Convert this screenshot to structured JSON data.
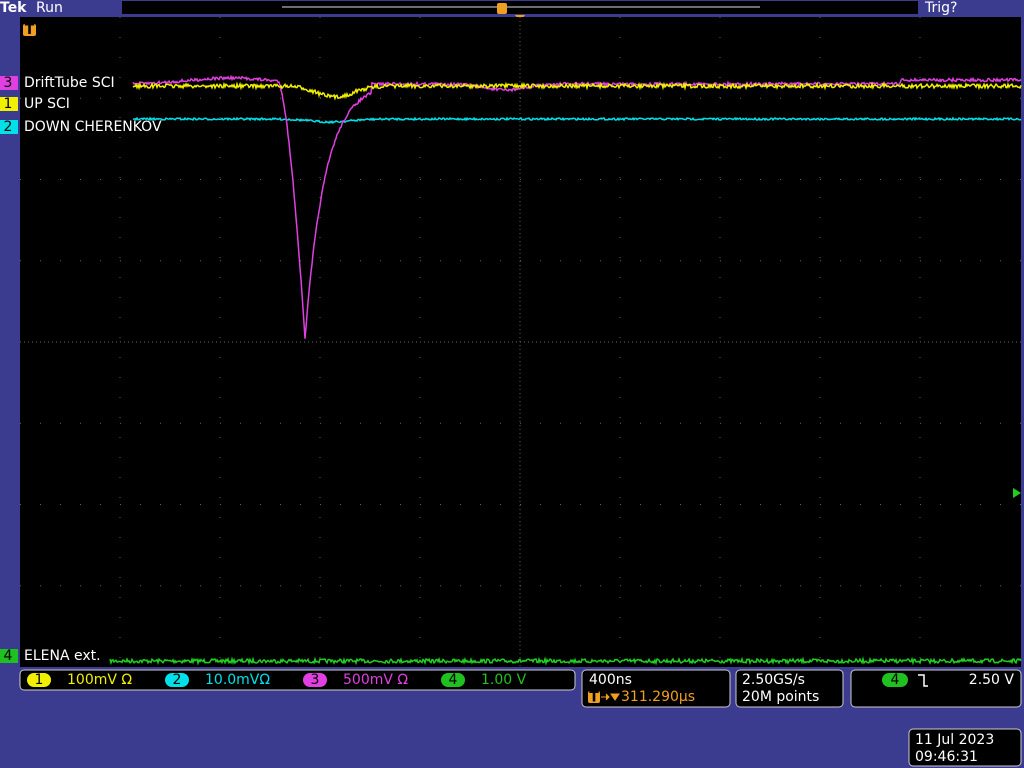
{
  "header": {
    "brand": "Tek",
    "status": "Run",
    "trigger_status": "Trig?",
    "trigger_marker": "T"
  },
  "channels": [
    {
      "number": "3",
      "label": "DriftTube SCI"
    },
    {
      "number": "1",
      "label": "UP SCI"
    },
    {
      "number": "2",
      "label": "DOWN CHERENKOV"
    },
    {
      "number": "4",
      "label": "ELENA ext."
    }
  ],
  "scale_readouts": [
    {
      "channel": "1",
      "scale": "100mV Ω"
    },
    {
      "channel": "2",
      "scale": "10.0mVΩ"
    },
    {
      "channel": "3",
      "scale": "500mV Ω"
    },
    {
      "channel": "4",
      "scale": "1.00 V"
    }
  ],
  "timebase": {
    "scale": "400ns",
    "trigger_marker": "T",
    "trigger_position": "311.290µs"
  },
  "acquisition": {
    "sample_rate": "2.50GS/s",
    "record_length": "20M points"
  },
  "trigger": {
    "source": "4",
    "level": "2.50 V"
  },
  "datetime": {
    "date": "11 Jul 2023",
    "time": "09:46:31"
  }
}
